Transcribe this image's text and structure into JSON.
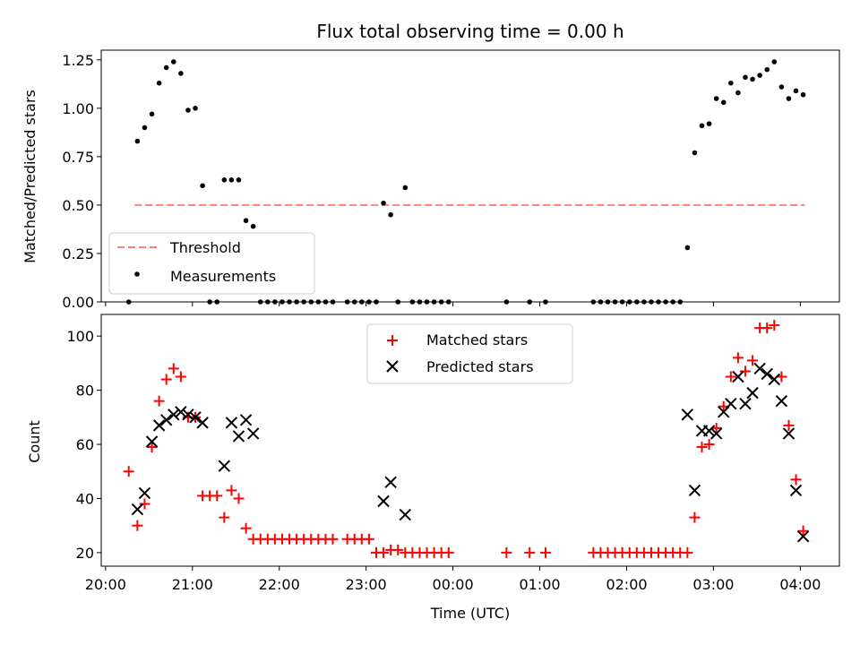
{
  "chart_data": [
    {
      "type": "scatter",
      "title": "Flux total observing time = 0.00 h",
      "xlabel": "",
      "ylabel": "Matched/Predicted stars",
      "ylim": [
        0,
        1.3
      ],
      "yticks": [
        "0.00",
        "0.25",
        "0.50",
        "0.75",
        "1.00",
        "1.25"
      ],
      "ytick_values": [
        0,
        0.25,
        0.5,
        0.75,
        1.0,
        1.25
      ],
      "legend_position": "lower-left",
      "threshold": {
        "name": "Threshold",
        "value": 0.5,
        "x_range": [
          "20:20",
          "04:03"
        ],
        "color": "#ff8080",
        "style": "dashed"
      },
      "series": [
        {
          "name": "Measurements",
          "marker": "dot",
          "color": "#000000",
          "points": [
            [
              "20:16",
              0.0
            ],
            [
              "20:22",
              0.83
            ],
            [
              "20:27",
              0.9
            ],
            [
              "20:32",
              0.97
            ],
            [
              "20:37",
              1.13
            ],
            [
              "20:42",
              1.21
            ],
            [
              "20:47",
              1.24
            ],
            [
              "20:52",
              1.18
            ],
            [
              "20:57",
              0.99
            ],
            [
              "21:02",
              1.0
            ],
            [
              "21:07",
              0.6
            ],
            [
              "21:12",
              0.0
            ],
            [
              "21:17",
              0.0
            ],
            [
              "21:22",
              0.63
            ],
            [
              "21:27",
              0.63
            ],
            [
              "21:32",
              0.63
            ],
            [
              "21:37",
              0.42
            ],
            [
              "21:42",
              0.39
            ],
            [
              "21:47",
              0.0
            ],
            [
              "21:52",
              0.0
            ],
            [
              "21:57",
              0.0
            ],
            [
              "22:02",
              0.0
            ],
            [
              "22:07",
              0.0
            ],
            [
              "22:12",
              0.0
            ],
            [
              "22:17",
              0.0
            ],
            [
              "22:22",
              0.0
            ],
            [
              "22:27",
              0.0
            ],
            [
              "22:32",
              0.0
            ],
            [
              "22:37",
              0.0
            ],
            [
              "22:47",
              0.0
            ],
            [
              "22:52",
              0.0
            ],
            [
              "22:57",
              0.0
            ],
            [
              "23:02",
              0.0
            ],
            [
              "23:07",
              0.0
            ],
            [
              "23:12",
              0.51
            ],
            [
              "23:17",
              0.45
            ],
            [
              "23:22",
              0.0
            ],
            [
              "23:27",
              0.59
            ],
            [
              "23:32",
              0.0
            ],
            [
              "23:37",
              0.0
            ],
            [
              "23:42",
              0.0
            ],
            [
              "23:47",
              0.0
            ],
            [
              "23:52",
              0.0
            ],
            [
              "23:57",
              0.0
            ],
            [
              "00:37",
              0.0
            ],
            [
              "00:53",
              0.0
            ],
            [
              "01:04",
              0.0
            ],
            [
              "01:37",
              0.0
            ],
            [
              "01:42",
              0.0
            ],
            [
              "01:47",
              0.0
            ],
            [
              "01:52",
              0.0
            ],
            [
              "01:57",
              0.0
            ],
            [
              "02:02",
              0.0
            ],
            [
              "02:07",
              0.0
            ],
            [
              "02:12",
              0.0
            ],
            [
              "02:17",
              0.0
            ],
            [
              "02:22",
              0.0
            ],
            [
              "02:27",
              0.0
            ],
            [
              "02:32",
              0.0
            ],
            [
              "02:37",
              0.0
            ],
            [
              "02:42",
              0.28
            ],
            [
              "02:47",
              0.77
            ],
            [
              "02:52",
              0.91
            ],
            [
              "02:57",
              0.92
            ],
            [
              "03:02",
              1.05
            ],
            [
              "03:07",
              1.03
            ],
            [
              "03:12",
              1.13
            ],
            [
              "03:17",
              1.08
            ],
            [
              "03:22",
              1.16
            ],
            [
              "03:27",
              1.15
            ],
            [
              "03:32",
              1.17
            ],
            [
              "03:37",
              1.2
            ],
            [
              "03:42",
              1.24
            ],
            [
              "03:47",
              1.11
            ],
            [
              "03:52",
              1.05
            ],
            [
              "03:57",
              1.09
            ],
            [
              "04:02",
              1.07
            ]
          ]
        }
      ]
    },
    {
      "type": "scatter",
      "title": "",
      "xlabel": "Time (UTC)",
      "ylabel": "Count",
      "ylim": [
        15,
        108
      ],
      "yticks": [
        "20",
        "40",
        "60",
        "80",
        "100"
      ],
      "ytick_values": [
        20,
        40,
        60,
        80,
        100
      ],
      "xlim": [
        "19:57",
        "04:27"
      ],
      "xticks": [
        "20:00",
        "21:00",
        "22:00",
        "23:00",
        "00:00",
        "01:00",
        "02:00",
        "03:00",
        "04:00"
      ],
      "legend_position": "top-center",
      "series": [
        {
          "name": "Matched stars",
          "marker": "plus",
          "color": "#ff0000",
          "points": [
            [
              "20:16",
              50
            ],
            [
              "20:22",
              30
            ],
            [
              "20:27",
              38
            ],
            [
              "20:32",
              59
            ],
            [
              "20:37",
              76
            ],
            [
              "20:42",
              84
            ],
            [
              "20:47",
              88
            ],
            [
              "20:52",
              85
            ],
            [
              "20:57",
              70
            ],
            [
              "21:02",
              70
            ],
            [
              "21:07",
              41
            ],
            [
              "21:12",
              41
            ],
            [
              "21:17",
              41
            ],
            [
              "21:22",
              33
            ],
            [
              "21:27",
              43
            ],
            [
              "21:32",
              40
            ],
            [
              "21:37",
              29
            ],
            [
              "21:42",
              25
            ],
            [
              "21:47",
              25
            ],
            [
              "21:52",
              25
            ],
            [
              "21:57",
              25
            ],
            [
              "22:02",
              25
            ],
            [
              "22:07",
              25
            ],
            [
              "22:12",
              25
            ],
            [
              "22:17",
              25
            ],
            [
              "22:22",
              25
            ],
            [
              "22:27",
              25
            ],
            [
              "22:32",
              25
            ],
            [
              "22:37",
              25
            ],
            [
              "22:47",
              25
            ],
            [
              "22:52",
              25
            ],
            [
              "22:57",
              25
            ],
            [
              "23:02",
              25
            ],
            [
              "23:07",
              20
            ],
            [
              "23:12",
              20
            ],
            [
              "23:17",
              21
            ],
            [
              "23:22",
              21
            ],
            [
              "23:27",
              20
            ],
            [
              "23:32",
              20
            ],
            [
              "23:37",
              20
            ],
            [
              "23:42",
              20
            ],
            [
              "23:47",
              20
            ],
            [
              "23:52",
              20
            ],
            [
              "23:57",
              20
            ],
            [
              "00:37",
              20
            ],
            [
              "00:53",
              20
            ],
            [
              "01:04",
              20
            ],
            [
              "01:37",
              20
            ],
            [
              "01:42",
              20
            ],
            [
              "01:47",
              20
            ],
            [
              "01:52",
              20
            ],
            [
              "01:57",
              20
            ],
            [
              "02:02",
              20
            ],
            [
              "02:07",
              20
            ],
            [
              "02:12",
              20
            ],
            [
              "02:17",
              20
            ],
            [
              "02:22",
              20
            ],
            [
              "02:27",
              20
            ],
            [
              "02:32",
              20
            ],
            [
              "02:37",
              20
            ],
            [
              "02:42",
              20
            ],
            [
              "02:47",
              33
            ],
            [
              "02:52",
              59
            ],
            [
              "02:57",
              60
            ],
            [
              "03:02",
              66
            ],
            [
              "03:07",
              74
            ],
            [
              "03:12",
              85
            ],
            [
              "03:17",
              92
            ],
            [
              "03:22",
              87
            ],
            [
              "03:27",
              91
            ],
            [
              "03:32",
              103
            ],
            [
              "03:37",
              103
            ],
            [
              "03:42",
              104
            ],
            [
              "03:47",
              85
            ],
            [
              "03:52",
              67
            ],
            [
              "03:57",
              47
            ],
            [
              "04:02",
              28
            ]
          ]
        },
        {
          "name": "Predicted stars",
          "marker": "x",
          "color": "#000000",
          "points": [
            [
              "20:22",
              36
            ],
            [
              "20:27",
              42
            ],
            [
              "20:32",
              61
            ],
            [
              "20:37",
              67
            ],
            [
              "20:42",
              69
            ],
            [
              "20:47",
              71
            ],
            [
              "20:52",
              72
            ],
            [
              "20:57",
              71
            ],
            [
              "21:02",
              70
            ],
            [
              "21:07",
              68
            ],
            [
              "21:22",
              52
            ],
            [
              "21:27",
              68
            ],
            [
              "21:32",
              63
            ],
            [
              "21:37",
              69
            ],
            [
              "21:42",
              64
            ],
            [
              "23:12",
              39
            ],
            [
              "23:17",
              46
            ],
            [
              "23:27",
              34
            ],
            [
              "02:42",
              71
            ],
            [
              "02:47",
              43
            ],
            [
              "02:52",
              65
            ],
            [
              "02:57",
              65
            ],
            [
              "03:02",
              64
            ],
            [
              "03:07",
              72
            ],
            [
              "03:12",
              75
            ],
            [
              "03:17",
              85
            ],
            [
              "03:22",
              75
            ],
            [
              "03:27",
              79
            ],
            [
              "03:32",
              88
            ],
            [
              "03:37",
              86
            ],
            [
              "03:42",
              84
            ],
            [
              "03:47",
              76
            ],
            [
              "03:52",
              64
            ],
            [
              "03:57",
              43
            ],
            [
              "04:02",
              26
            ]
          ]
        }
      ]
    }
  ]
}
